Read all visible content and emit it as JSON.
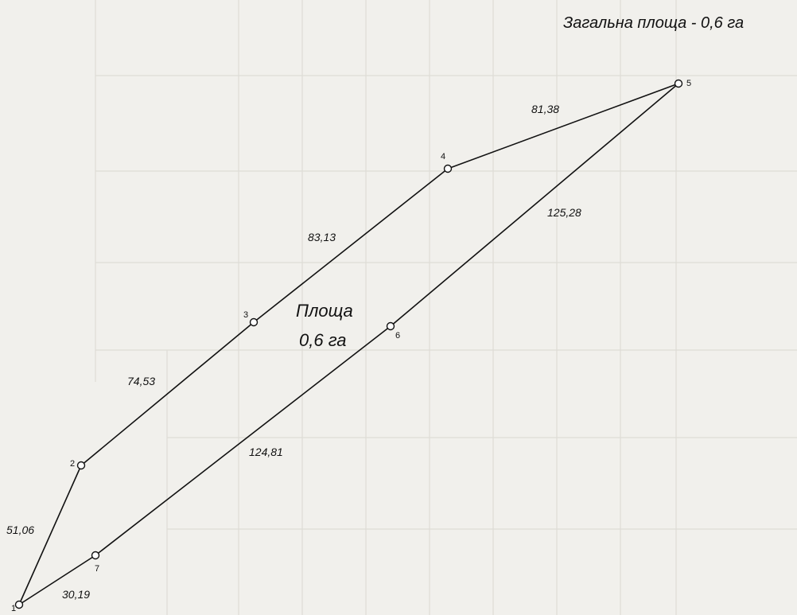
{
  "title": "Загальна площа - 0,6 га",
  "plot_area": {
    "line1": "Площа",
    "line2": "0,6 га"
  },
  "vertices": [
    {
      "id": "1",
      "label": "1"
    },
    {
      "id": "2",
      "label": "2"
    },
    {
      "id": "3",
      "label": "3"
    },
    {
      "id": "4",
      "label": "4"
    },
    {
      "id": "5",
      "label": "5"
    },
    {
      "id": "6",
      "label": "6"
    },
    {
      "id": "7",
      "label": "7"
    }
  ],
  "edges": [
    {
      "from": "1",
      "to": "2",
      "length": "51,06"
    },
    {
      "from": "2",
      "to": "3",
      "length": "74,53"
    },
    {
      "from": "3",
      "to": "4",
      "length": "83,13"
    },
    {
      "from": "4",
      "to": "5",
      "length": "81,38"
    },
    {
      "from": "5",
      "to": "6",
      "length": "125,28"
    },
    {
      "from": "6",
      "to": "7",
      "length": "124,81"
    },
    {
      "from": "7",
      "to": "1",
      "length": "30,19"
    }
  ],
  "colors": {
    "background": "#f1f0ec",
    "line": "#111111"
  }
}
